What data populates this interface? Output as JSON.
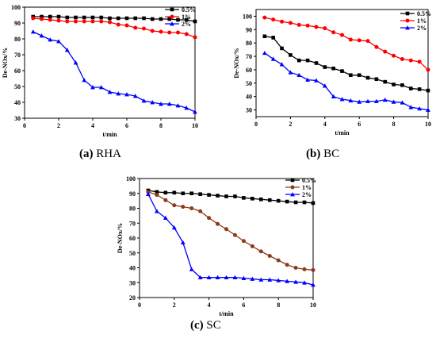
{
  "captions": [
    {
      "letter": "(a)",
      "name": "RHA"
    },
    {
      "letter": "(b)",
      "name": "BC"
    },
    {
      "letter": "(c)",
      "name": "SC"
    }
  ],
  "chart_data": [
    {
      "type": "line",
      "xlabel": "t/min",
      "ylabel": "De-NOx/%",
      "xlim": [
        0,
        10
      ],
      "ylim": [
        30,
        100
      ],
      "xticks": [
        0,
        2,
        4,
        6,
        8,
        10
      ],
      "yticks": [
        30,
        40,
        50,
        60,
        70,
        80,
        90,
        100
      ],
      "legend_position": "top-right",
      "x": [
        0.5,
        1,
        1.5,
        2,
        2.5,
        3,
        3.5,
        4,
        4.5,
        5,
        5.5,
        6,
        6.5,
        7,
        7.5,
        8,
        8.5,
        9,
        9.5,
        10
      ],
      "series": [
        {
          "name": "0.5%",
          "color": "#000000",
          "marker": "square",
          "values": [
            94,
            94,
            94,
            94,
            93.5,
            93.5,
            93.5,
            93.5,
            93.5,
            93,
            93,
            93,
            93,
            93,
            92.5,
            92.5,
            92.5,
            92,
            92,
            91
          ]
        },
        {
          "name": "1%",
          "color": "#ff0000",
          "marker": "circle",
          "values": [
            93,
            92.5,
            92,
            91.5,
            91,
            91,
            91,
            91,
            91,
            90.5,
            89,
            88.5,
            87,
            86.5,
            85,
            84.5,
            84,
            84,
            83,
            81
          ]
        },
        {
          "name": "2%",
          "color": "#0000ff",
          "marker": "triangle",
          "values": [
            84.5,
            82,
            79.5,
            78.5,
            73,
            65,
            54,
            49.5,
            49.5,
            46.5,
            45.5,
            45,
            44,
            41,
            40,
            39,
            39,
            38,
            36.5,
            34
          ]
        }
      ]
    },
    {
      "type": "line",
      "xlabel": "t/min",
      "ylabel": "De-NOx/%",
      "xlim": [
        0,
        10
      ],
      "ylim": [
        25,
        105
      ],
      "xticks": [
        0,
        2,
        4,
        6,
        8,
        10
      ],
      "yticks": [
        30,
        40,
        50,
        60,
        70,
        80,
        90,
        100
      ],
      "legend_position": "top-right",
      "x": [
        0.5,
        1,
        1.5,
        2,
        2.5,
        3,
        3.5,
        4,
        4.5,
        5,
        5.5,
        6,
        6.5,
        7,
        7.5,
        8,
        8.5,
        9,
        9.5,
        10
      ],
      "series": [
        {
          "name": "0.5%",
          "color": "#000000",
          "marker": "square",
          "values": [
            85,
            84,
            76,
            71,
            67,
            67,
            65,
            62,
            61,
            59,
            56,
            56,
            54,
            53,
            51,
            49,
            48.5,
            46,
            45.5,
            44.5
          ]
        },
        {
          "name": "1%",
          "color": "#ff0000",
          "marker": "circle",
          "values": [
            99,
            97.5,
            96,
            95,
            93.5,
            93,
            92,
            91,
            88,
            86,
            82.5,
            82,
            81.5,
            77,
            73.5,
            70.5,
            68,
            67,
            66,
            60
          ]
        },
        {
          "name": "2%",
          "color": "#0000ff",
          "marker": "triangle",
          "values": [
            72.5,
            68,
            64,
            58,
            56,
            52.5,
            52,
            48,
            40,
            38,
            37,
            36,
            36.5,
            36.5,
            37.5,
            36,
            35.5,
            32,
            31,
            30
          ]
        }
      ]
    },
    {
      "type": "line",
      "xlabel": "t/min",
      "ylabel": "De-NOx/%",
      "xlim": [
        0,
        10
      ],
      "ylim": [
        20,
        100
      ],
      "xticks": [
        0,
        2,
        4,
        6,
        8,
        10
      ],
      "yticks": [
        20,
        30,
        40,
        50,
        60,
        70,
        80,
        90,
        100
      ],
      "legend_position": "top-right",
      "x": [
        0.5,
        1,
        1.5,
        2,
        2.5,
        3,
        3.5,
        4,
        4.5,
        5,
        5.5,
        6,
        6.5,
        7,
        7.5,
        8,
        8.5,
        9,
        9.5,
        10
      ],
      "series": [
        {
          "name": "0.5%",
          "color": "#000000",
          "marker": "square",
          "values": [
            92,
            91,
            90.5,
            90.5,
            90,
            90,
            89.5,
            89,
            88.5,
            88,
            88,
            87,
            86.5,
            86,
            85.5,
            85,
            84.5,
            84,
            84,
            83.5
          ]
        },
        {
          "name": "1%",
          "color": "#8b3a1a",
          "marker": "circle",
          "values": [
            91,
            89,
            85.5,
            82,
            81,
            80,
            78,
            73.5,
            69.5,
            66,
            62,
            58,
            54.5,
            51,
            48,
            45,
            42,
            40,
            39,
            38.5
          ]
        },
        {
          "name": "2%",
          "color": "#0000ff",
          "marker": "triangle",
          "values": [
            89.5,
            78,
            73.5,
            67,
            57,
            39,
            33.5,
            33.5,
            33.5,
            33.5,
            33.5,
            33,
            32.5,
            32,
            32,
            31.5,
            31,
            30.5,
            30,
            28.5
          ]
        }
      ]
    }
  ]
}
